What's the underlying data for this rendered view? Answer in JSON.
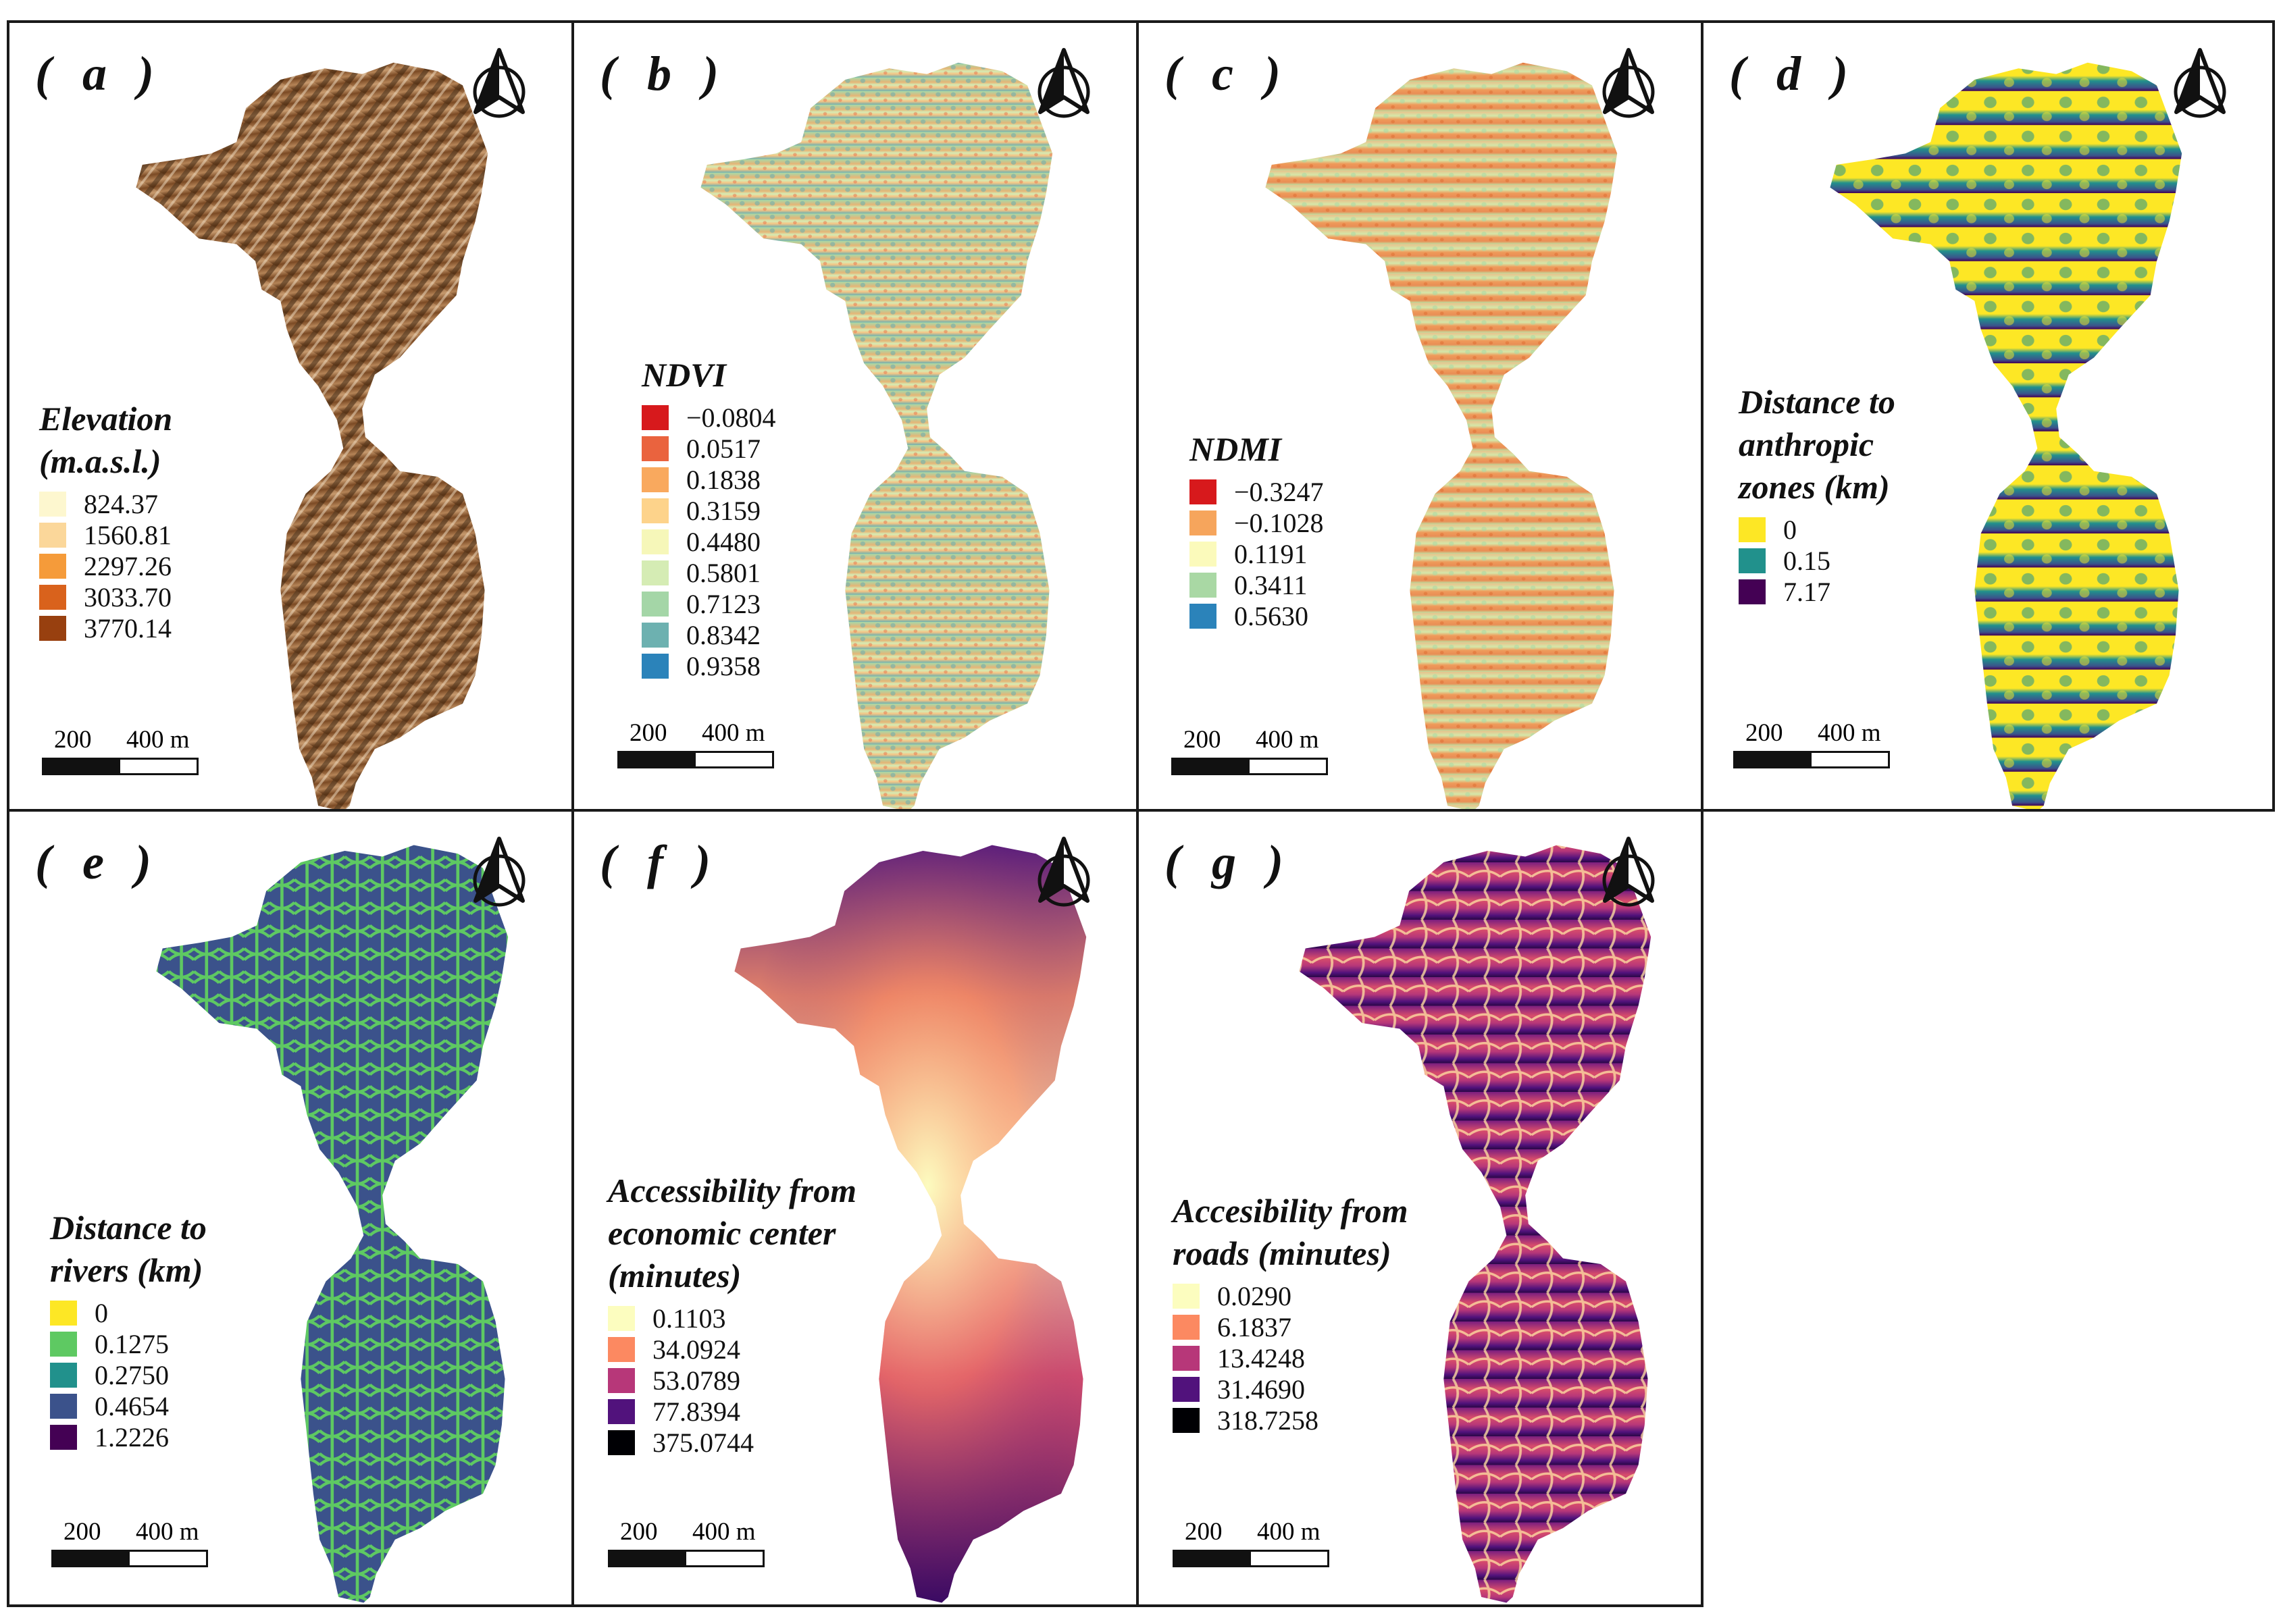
{
  "scale": {
    "label_1": "200",
    "label_2": "400 m"
  },
  "panels": [
    {
      "id": "a",
      "label": "( a )",
      "legend_title": [
        "Elevation",
        "(m.a.s.l.)"
      ],
      "legend": [
        {
          "label": "824.37",
          "color": "#fdf7cf"
        },
        {
          "label": "1560.81",
          "color": "#fbd79a"
        },
        {
          "label": "2297.26",
          "color": "#f59b3a"
        },
        {
          "label": "3033.70",
          "color": "#d9621c"
        },
        {
          "label": "3770.14",
          "color": "#98400f"
        }
      ]
    },
    {
      "id": "b",
      "label": "( b )",
      "legend_title": [
        "NDVI"
      ],
      "legend": [
        {
          "label": "−0.0804",
          "color": "#d7191c"
        },
        {
          "label": "0.0517",
          "color": "#ea633e"
        },
        {
          "label": "0.1838",
          "color": "#f9a95e"
        },
        {
          "label": "0.3159",
          "color": "#fdd38b"
        },
        {
          "label": "0.4480",
          "color": "#f6f7b9"
        },
        {
          "label": "0.5801",
          "color": "#d5ecb4"
        },
        {
          "label": "0.7123",
          "color": "#a4d6a7"
        },
        {
          "label": "0.8342",
          "color": "#6db1b0"
        },
        {
          "label": "0.9358",
          "color": "#2b83ba"
        }
      ]
    },
    {
      "id": "c",
      "label": "( c )",
      "legend_title": [
        "NDMI"
      ],
      "legend": [
        {
          "label": "−0.3247",
          "color": "#d7191c"
        },
        {
          "label": "−0.1028",
          "color": "#f6a55c"
        },
        {
          "label": "0.1191",
          "color": "#fbfabb"
        },
        {
          "label": "0.3411",
          "color": "#a9d8a4"
        },
        {
          "label": "0.5630",
          "color": "#2b83ba"
        }
      ]
    },
    {
      "id": "d",
      "label": "( d )",
      "legend_title": [
        "Distance to",
        "anthropic",
        "zones (km)"
      ],
      "legend": [
        {
          "label": "0",
          "color": "#fde725"
        },
        {
          "label": "0.15",
          "color": "#21918c"
        },
        {
          "label": "7.17",
          "color": "#440154"
        }
      ]
    },
    {
      "id": "e",
      "label": "( e )",
      "legend_title": [
        "Distance to",
        "rivers (km)"
      ],
      "legend": [
        {
          "label": "0",
          "color": "#fde725"
        },
        {
          "label": "0.1275",
          "color": "#5ec962"
        },
        {
          "label": "0.2750",
          "color": "#21918c"
        },
        {
          "label": "0.4654",
          "color": "#3b528b"
        },
        {
          "label": "1.2226",
          "color": "#440154"
        }
      ]
    },
    {
      "id": "f",
      "label": "( f )",
      "legend_title": [
        "Accessibility from",
        "economic center",
        "(minutes)"
      ],
      "legend": [
        {
          "label": "0.1103",
          "color": "#fcfdbf"
        },
        {
          "label": "34.0924",
          "color": "#fc8961"
        },
        {
          "label": "53.0789",
          "color": "#b73779"
        },
        {
          "label": "77.8394",
          "color": "#51127c"
        },
        {
          "label": "375.0744",
          "color": "#000004"
        }
      ]
    },
    {
      "id": "g",
      "label": "( g )",
      "legend_title": [
        "Accesibility from",
        "roads (minutes)"
      ],
      "legend": [
        {
          "label": "0.0290",
          "color": "#fcfdbf"
        },
        {
          "label": "6.1837",
          "color": "#fc8961"
        },
        {
          "label": "13.4248",
          "color": "#b73779"
        },
        {
          "label": "31.4690",
          "color": "#51127c"
        },
        {
          "label": "318.7258",
          "color": "#000004"
        }
      ]
    }
  ]
}
